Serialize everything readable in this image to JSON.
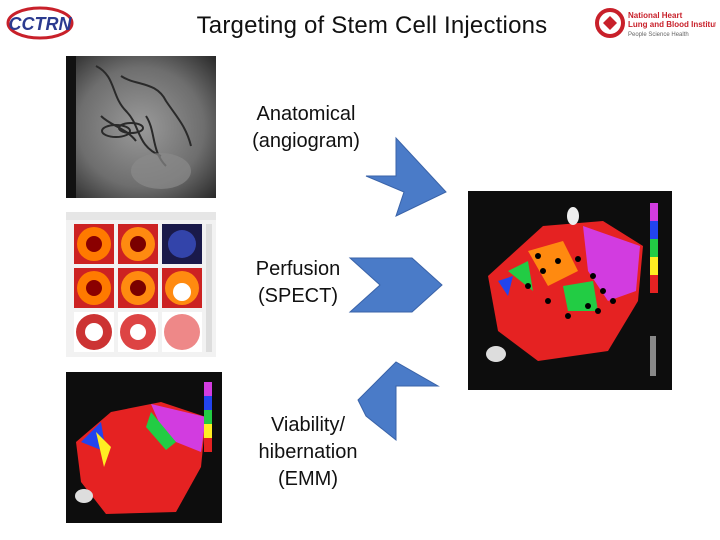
{
  "slide": {
    "title": "Targeting of Stem Cell Injections"
  },
  "logos": {
    "left": {
      "text": "CCTRN",
      "color": "#2b3a8f",
      "accent": "#c8202a"
    },
    "right": {
      "line1": "National Heart",
      "line2": "Lung and Blood Institute",
      "line3": "People Science Health",
      "color": "#c8202a"
    }
  },
  "labels": {
    "anatomical_line1": "Anatomical",
    "anatomical_line2": "(angiogram)",
    "perfusion_line1": "Perfusion",
    "perfusion_line2": "(SPECT)",
    "viability_line1": "Viability/",
    "viability_line2": "hibernation",
    "viability_line3": "(EMM)"
  },
  "colors": {
    "arrow": "#4a7bc8",
    "arrow_dark": "#3a63a8"
  }
}
